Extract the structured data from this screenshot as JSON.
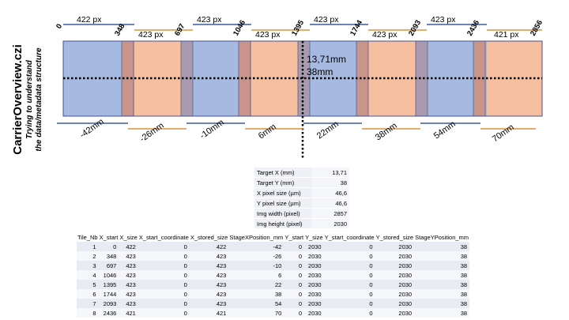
{
  "title": "CarrierOverview.czi",
  "subtitle_lines": [
    "Trying to understand",
    "the data/metadata structure"
  ],
  "x_start_labels": [
    "0",
    "348",
    "697",
    "1046",
    "1395",
    "1744",
    "2093",
    "2436",
    "2856"
  ],
  "top_size_labels": [
    "422 px",
    "423 px",
    "423 px",
    "423 px",
    "423 px",
    "423 px",
    "423 px",
    "421 px"
  ],
  "bottom_mm_labels": [
    "-42mm",
    "-26mm",
    "-10mm",
    "6mm",
    "22mm",
    "38mm",
    "54mm",
    "70mm"
  ],
  "target_label_x": "13,71mm",
  "target_label_y": "38mm",
  "tile_colors": [
    "#a6b9e0",
    "#f6c0a0"
  ],
  "overlap_colors": [
    "#c9958a",
    "#a99ab0"
  ],
  "target_info": [
    {
      "label": "Target X (mm)",
      "value": "13,71"
    },
    {
      "label": "Target Y (mm)",
      "value": "38"
    },
    {
      "label": "X pixel size (µm)",
      "value": "46,6"
    },
    {
      "label": "Y pixel size (µm)",
      "value": "46,6"
    },
    {
      "label": "Img width (pixel)",
      "value": "2857"
    },
    {
      "label": "Img height (pixel)",
      "value": "2030"
    }
  ],
  "tile_table": {
    "headers": [
      "Tile_Nb",
      "X_start",
      "X_size",
      "X_start_coordinate",
      "X_stored_size",
      "StageXPosition_mm",
      "Y_start",
      "Y_size",
      "Y_start_coordinate",
      "Y_stored_size",
      "StageYPosition_mm"
    ],
    "rows": [
      [
        "1",
        "0",
        "422",
        "0",
        "422",
        "-42",
        "0",
        "2030",
        "0",
        "2030",
        "38"
      ],
      [
        "2",
        "348",
        "423",
        "0",
        "423",
        "-26",
        "0",
        "2030",
        "0",
        "2030",
        "38"
      ],
      [
        "3",
        "697",
        "423",
        "0",
        "423",
        "-10",
        "0",
        "2030",
        "0",
        "2030",
        "38"
      ],
      [
        "4",
        "1046",
        "423",
        "0",
        "423",
        "6",
        "0",
        "2030",
        "0",
        "2030",
        "38"
      ],
      [
        "5",
        "1395",
        "423",
        "0",
        "423",
        "22",
        "0",
        "2030",
        "0",
        "2030",
        "38"
      ],
      [
        "6",
        "1744",
        "423",
        "0",
        "423",
        "38",
        "0",
        "2030",
        "0",
        "2030",
        "38"
      ],
      [
        "7",
        "2093",
        "423",
        "0",
        "423",
        "54",
        "0",
        "2030",
        "0",
        "2030",
        "38"
      ],
      [
        "8",
        "2436",
        "421",
        "0",
        "421",
        "70",
        "0",
        "2030",
        "0",
        "2030",
        "38"
      ]
    ]
  }
}
